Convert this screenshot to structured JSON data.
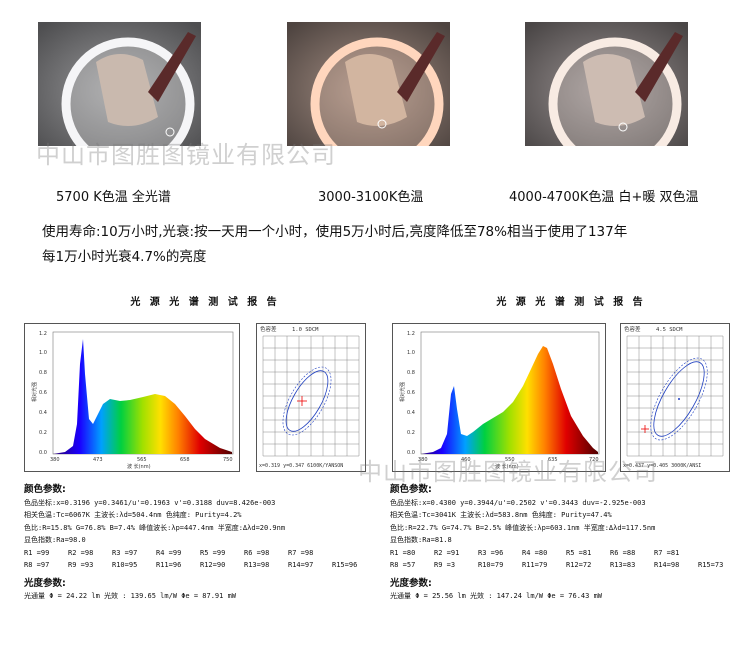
{
  "watermark": "中山市图胜图镜业有限公司",
  "photos": [
    {
      "caption": "5700 K色温 全光谱",
      "glow": "#f2f2f4",
      "bg": "#6f6f70"
    },
    {
      "caption": "3000-3100K色温",
      "glow": "#ffd3b8",
      "bg": "#7a6e68"
    },
    {
      "caption": "4000-4700K色温 白+暖 双色温",
      "glow": "#f7e8e0",
      "bg": "#6e6a6a"
    }
  ],
  "lifespan": {
    "line1": "使用寿命:10万小时,光衰:按一天用一个小时，使用5万小时后,亮度降低至78%相当于使用了137年",
    "line2": "每1万小时光衰4.7%的亮度"
  },
  "reports": [
    {
      "title": "光 源 光 谱 测 试 报 告",
      "spectrum": {
        "yticks": [
          "1.2",
          "1.0",
          "0.8",
          "0.6",
          "0.4",
          "0.2",
          "0.0"
        ],
        "ylabel": "相对光强",
        "xticks": [
          "380",
          "473",
          "565",
          "658",
          "750"
        ],
        "xlabel": "波 长(nm)"
      },
      "chroma": {
        "header_label": "色容差",
        "header_value": "1.0 SDCM",
        "footer": "x=0.319 y=0.347 6100K/YANSON"
      },
      "section_color": "颜色参数:",
      "lines": [
        "色品坐标:x=0.3196  y=0.3461/u'=0.1963  v'=0.3188   duv=8.426e-003",
        "相关色温:Tc=6067K  主波长:λd=504.4nm  色纯度: Purity=4.2%",
        "色比:R=15.8% G=76.8% B=7.4%  峰值波长:λp=447.4nm  半宽度:Δλd=20.9nm",
        "显色指数:Ra=98.0"
      ],
      "ri_row1": [
        "R1 =99",
        "R2 =98",
        "R3 =97",
        "R4 =99",
        "R5 =99",
        "R6 =98",
        "R7 =98"
      ],
      "ri_row2": [
        "R8 =97",
        "R9 =93",
        "R10=95",
        "R11=96",
        "R12=90",
        "R13=98",
        "R14=97",
        "R15=96"
      ],
      "section_flux": "光度参数:",
      "flux_line": "光通量   Φ  = 24.22 lm    光效 : 139.65 lm/W  Φe  = 87.91 mW"
    },
    {
      "title": "光 源 光 谱 测 试 报 告",
      "spectrum": {
        "yticks": [
          "1.2",
          "1.0",
          "0.8",
          "0.6",
          "0.4",
          "0.2",
          "0.0"
        ],
        "ylabel": "相对光强",
        "xticks": [
          "380",
          "460",
          "550",
          "635",
          "720"
        ],
        "xlabel": "波 长(nm)"
      },
      "chroma": {
        "header_label": "色容差",
        "header_value": "4.5 SDCM",
        "footer": "x=0.437 y=0.405 3000K/ANSI"
      },
      "section_color": "颜色参数:",
      "lines": [
        "色品坐标:x=0.4300  y=0.3944/u'=0.2502  v'=0.3443   duv=-2.925e-003",
        "相关色温:Tc=3041K  主波长:λd=583.8nm  色纯度: Purity=47.4%",
        "色比:R=22.7% G=74.7% B=2.5%  峰值波长:λp=603.1nm  半宽度:Δλd=117.5nm",
        "显色指数:Ra=81.8"
      ],
      "ri_row1": [
        "R1 =80",
        "R2 =91",
        "R3 =96",
        "R4 =80",
        "R5 =81",
        "R6 =88",
        "R7 =81"
      ],
      "ri_row2": [
        "R8 =57",
        "R9 =3",
        "R10=79",
        "R11=79",
        "R12=72",
        "R13=83",
        "R14=98",
        "R15=73"
      ],
      "section_flux": "光度参数:",
      "flux_line": "光通量   Φ  = 25.56 lm    光效 : 147.24 lm/W  Φe  = 76.43 mW"
    }
  ]
}
